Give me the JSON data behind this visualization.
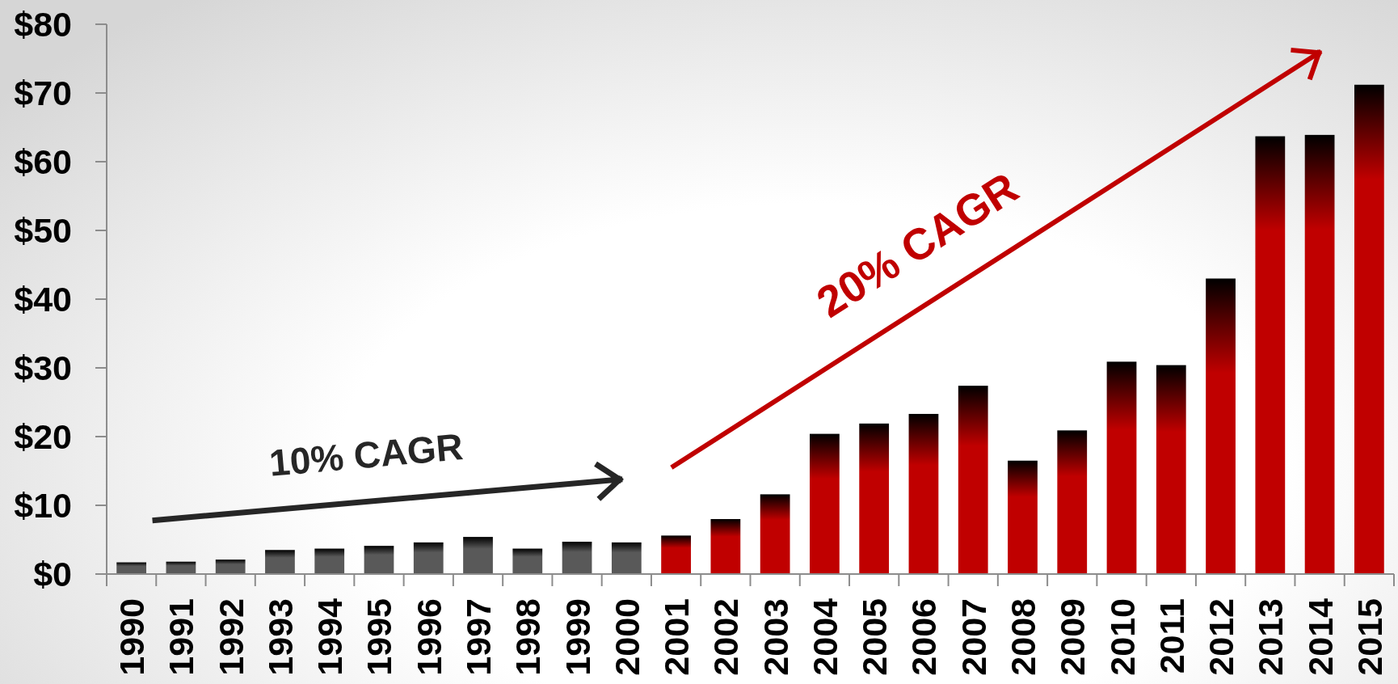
{
  "chart_data": {
    "type": "bar",
    "categories": [
      "1990",
      "1991",
      "1992",
      "1993",
      "1994",
      "1995",
      "1996",
      "1997",
      "1998",
      "1999",
      "2000",
      "2001",
      "2002",
      "2003",
      "2004",
      "2005",
      "2006",
      "2007",
      "2008",
      "2009",
      "2010",
      "2011",
      "2012",
      "2013",
      "2014",
      "2015"
    ],
    "values": [
      1.7,
      1.8,
      2.1,
      3.5,
      3.7,
      4.1,
      4.6,
      5.4,
      3.7,
      4.7,
      4.6,
      5.6,
      8.0,
      11.6,
      20.4,
      21.9,
      23.3,
      27.4,
      16.5,
      20.9,
      30.9,
      30.4,
      43.0,
      63.7,
      63.9,
      71.2
    ],
    "colors": [
      "#595959",
      "#595959",
      "#595959",
      "#595959",
      "#595959",
      "#595959",
      "#595959",
      "#595959",
      "#595959",
      "#595959",
      "#595959",
      "#c00000",
      "#c00000",
      "#c00000",
      "#c00000",
      "#c00000",
      "#c00000",
      "#c00000",
      "#c00000",
      "#c00000",
      "#c00000",
      "#c00000",
      "#c00000",
      "#c00000",
      "#c00000",
      "#c00000"
    ],
    "ylim": [
      0,
      80
    ],
    "yticks": [
      {
        "value": 0,
        "label": "$0"
      },
      {
        "value": 10,
        "label": "$10"
      },
      {
        "value": 20,
        "label": "$20"
      },
      {
        "value": 30,
        "label": "$30"
      },
      {
        "value": 40,
        "label": "$40"
      },
      {
        "value": 50,
        "label": "$50"
      },
      {
        "value": 60,
        "label": "$60"
      },
      {
        "value": 70,
        "label": "$70"
      },
      {
        "value": 80,
        "label": "$80"
      }
    ],
    "annotations": [
      "10% CAGR",
      "20% CAGR"
    ]
  }
}
